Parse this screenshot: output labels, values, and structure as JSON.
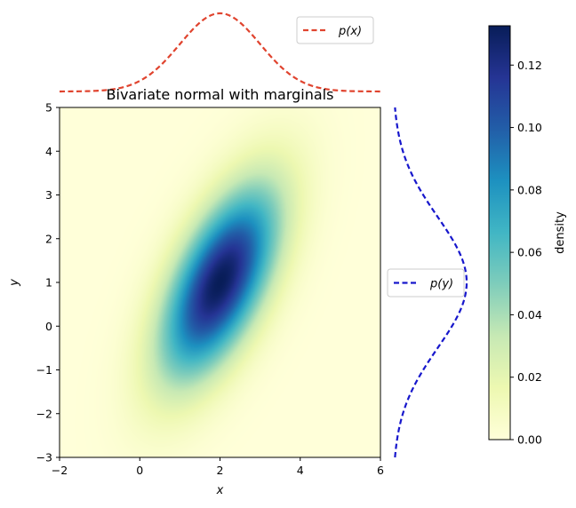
{
  "chart_data": {
    "type": "heatmap",
    "title": "Bivariate normal with marginals",
    "xlabel": "x",
    "ylabel": "y",
    "xlim": [
      -2,
      6
    ],
    "ylim": [
      -3,
      5
    ],
    "xticks": [
      "−2",
      "0",
      "2",
      "4",
      "6"
    ],
    "yticks": [
      "−3",
      "−2",
      "−1",
      "0",
      "1",
      "2",
      "3",
      "4",
      "5"
    ],
    "distribution": {
      "mean": [
        2,
        1
      ],
      "std": [
        1,
        1.5
      ],
      "correlation": 0.6
    },
    "colormap": "YlGnBu",
    "colorbar": {
      "label": "density",
      "range": [
        0,
        0.1326
      ],
      "ticks": [
        "0.00",
        "0.02",
        "0.04",
        "0.06",
        "0.08",
        "0.10",
        "0.12"
      ]
    },
    "marginals": [
      {
        "axis": "x",
        "label": "p(x)",
        "color": "#e0442f",
        "style": "dashed",
        "legend": "top-right"
      },
      {
        "axis": "y",
        "label": "p(y)",
        "color": "#1717cc",
        "style": "dashed",
        "legend": "left"
      }
    ]
  }
}
